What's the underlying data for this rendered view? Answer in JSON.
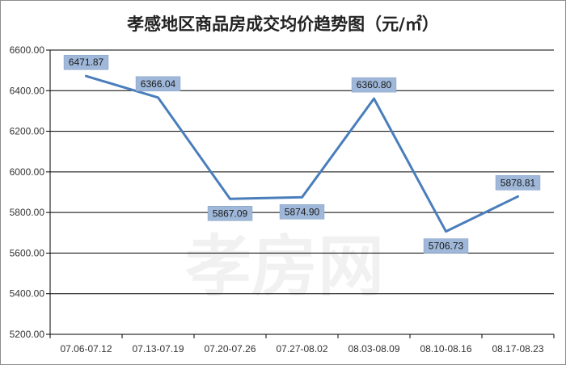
{
  "chart_data": {
    "type": "line",
    "title": "孝感地区商品房成交均价趋势图（元/㎡）",
    "xlabel": "",
    "ylabel": "",
    "categories": [
      "07.06-07.12",
      "07.13-07.19",
      "07.20-07.26",
      "07.27-08.02",
      "08.03-08.09",
      "08.10-08.16",
      "08.17-08.23"
    ],
    "series": [
      {
        "values": [
          6471.87,
          6366.04,
          5867.09,
          5874.9,
          6360.8,
          5706.73,
          5878.81
        ]
      }
    ],
    "data_labels": [
      "6471.87",
      "6366.04",
      "5867.09",
      "5874.90",
      "6360.80",
      "5706.73",
      "5878.81"
    ],
    "ylim": [
      5200,
      6600
    ],
    "yticks": [
      5200,
      5400,
      5600,
      5800,
      6000,
      6200,
      6400,
      6600
    ],
    "ytick_labels": [
      "5200.00",
      "5400.00",
      "5600.00",
      "5800.00",
      "6000.00",
      "6200.00",
      "6400.00",
      "6600.00"
    ],
    "grid": true,
    "legend": "none",
    "line_color": "#4a7ebb",
    "label_box_color": "#9fb8d9",
    "watermark": "孝房网"
  }
}
